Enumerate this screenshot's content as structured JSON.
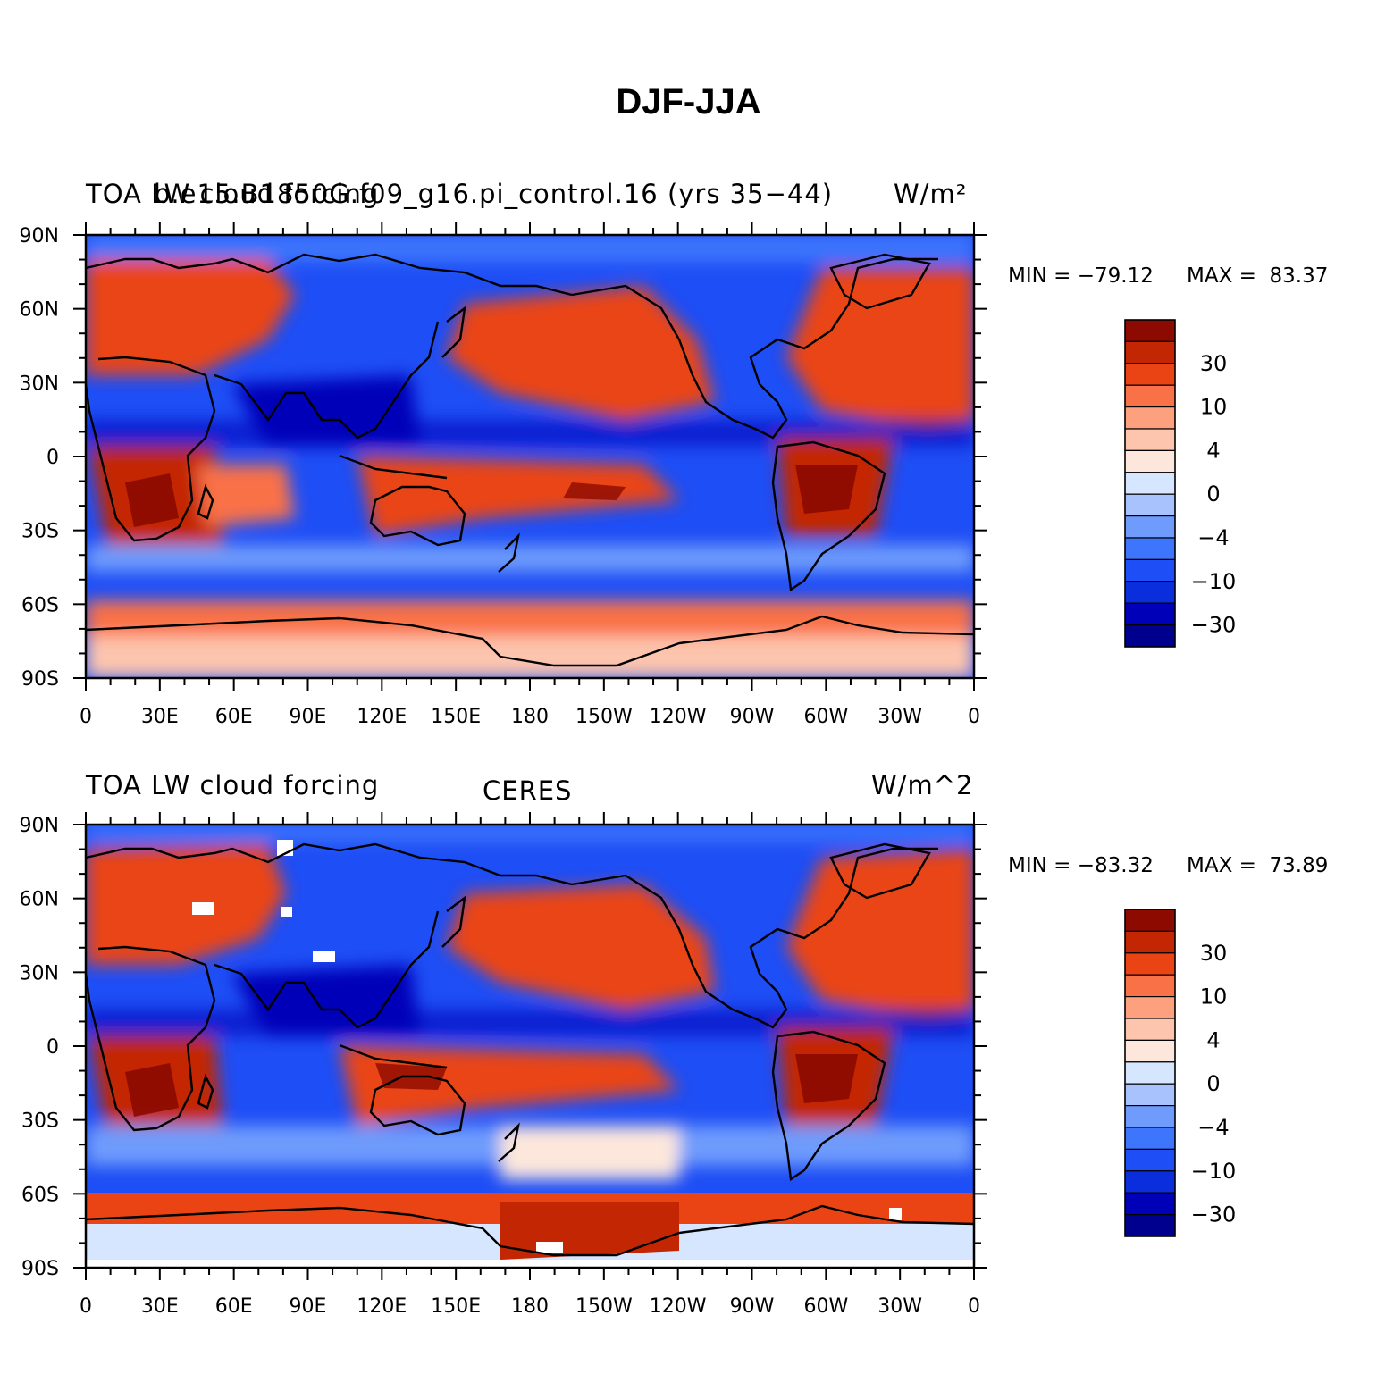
{
  "main_title": "DJF-JJA",
  "colors": {
    "levels": [
      "#00008f",
      "#0000b8",
      "#0a2edb",
      "#1e4ef5",
      "#3d76fc",
      "#6e9bfc",
      "#a8c2fd",
      "#d6e6fe",
      "#fde7dc",
      "#fdc5ad",
      "#fca07e",
      "#f97146",
      "#ea4414",
      "#c32602",
      "#8c0a00"
    ],
    "coast": "#000000"
  },
  "colorbar": {
    "labels": [
      "30",
      "10",
      "4",
      "0",
      "−4",
      "−10",
      "−30"
    ]
  },
  "x_ticks": [
    "0",
    "30E",
    "60E",
    "90E",
    "120E",
    "150E",
    "180",
    "150W",
    "120W",
    "90W",
    "60W",
    "30W",
    "0"
  ],
  "y_ticks": [
    "90N",
    "60N",
    "30N",
    "0",
    "30S",
    "60S",
    "90S"
  ],
  "panels": [
    {
      "left_title": "TOA LW cloud forcing",
      "center_title": "b.e15.B1850G.f09_g16.pi_control.16 (yrs 35−44)",
      "right_title": "W/m²",
      "min_label": "MIN = −79.12",
      "max_label": "MAX =  83.37"
    },
    {
      "left_title": "TOA LW cloud forcing",
      "center_title": "CERES",
      "right_title": "W/m^2",
      "min_label": "MIN = −83.32",
      "max_label": "MAX =  73.89"
    }
  ]
}
